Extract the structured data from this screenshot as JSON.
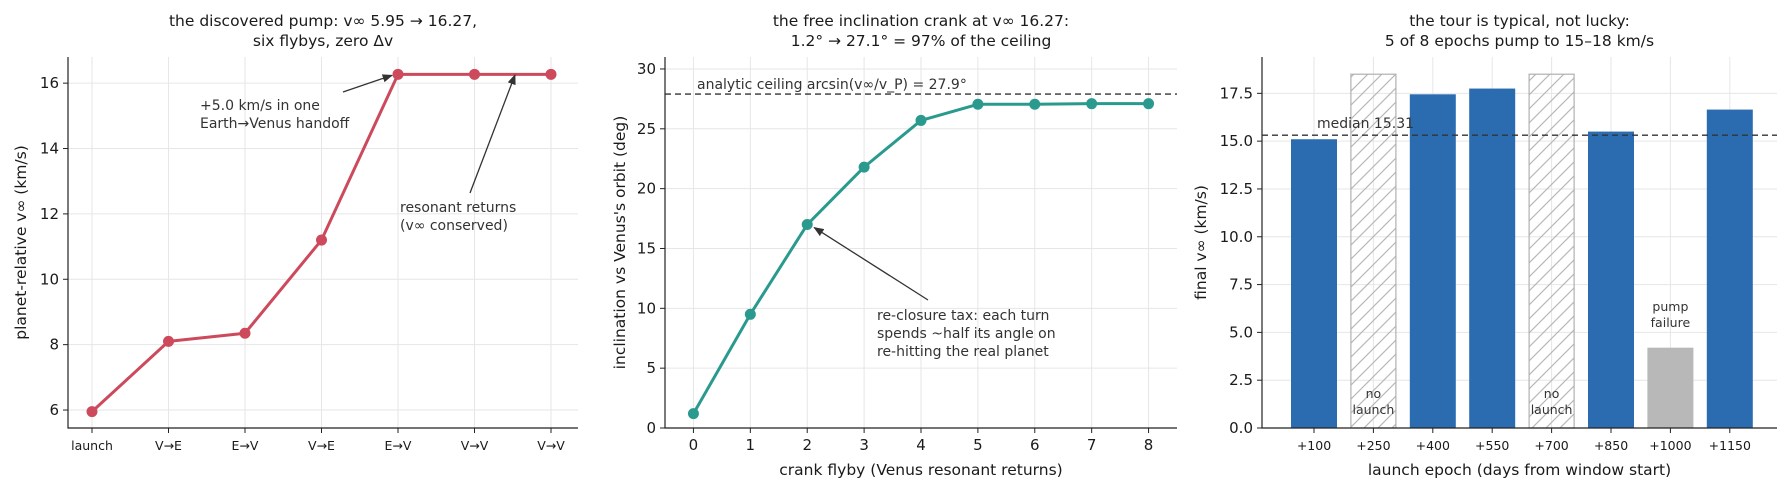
{
  "chart_data": [
    {
      "type": "line",
      "title": [
        "the discovered pump: v∞ 5.95 → 16.27,",
        "six flybys, zero Δv"
      ],
      "xlabel": "",
      "ylabel": "planet-relative v∞ (km/s)",
      "categories": [
        "launch",
        "V→E",
        "E→V",
        "V→E",
        "E→V",
        "V→V",
        "V→V"
      ],
      "values": [
        5.95,
        8.1,
        8.35,
        11.2,
        16.27,
        16.27,
        16.27
      ],
      "yticks": [
        6,
        8,
        10,
        12,
        14,
        16
      ],
      "ylim": [
        5.45,
        16.8
      ],
      "color": "#cc4a5c",
      "grid": true,
      "annotations": [
        {
          "lines": [
            "+5.0 km/s in one",
            "Earth→Venus handoff"
          ],
          "target_index": 4
        },
        {
          "lines": [
            "resonant returns",
            "(v∞ conserved)"
          ],
          "target_index": 5.5
        }
      ]
    },
    {
      "type": "line",
      "title": [
        "the free inclination crank at v∞ 16.27:",
        "1.2° → 27.1° = 97% of the ceiling"
      ],
      "xlabel": "crank flyby (Venus resonant returns)",
      "ylabel": "inclination vs Venus's orbit (deg)",
      "x": [
        0,
        1,
        2,
        3,
        4,
        5,
        6,
        7,
        8
      ],
      "values": [
        1.2,
        9.5,
        17.0,
        21.8,
        25.7,
        27.05,
        27.05,
        27.1,
        27.1
      ],
      "xticks": [
        0,
        1,
        2,
        3,
        4,
        5,
        6,
        7,
        8
      ],
      "yticks": [
        0,
        5,
        10,
        15,
        20,
        25,
        30
      ],
      "xlim": [
        -0.5,
        8.5
      ],
      "ylim": [
        0,
        31
      ],
      "color": "#2a9a8e",
      "grid": true,
      "ceiling": {
        "value": 27.9,
        "label": "analytic ceiling arcsin(v∞/v_P) = 27.9°"
      },
      "annotations": [
        {
          "lines": [
            "re-closure tax: each turn",
            "spends ~half its angle on",
            "re-hitting the real planet"
          ],
          "target_x": 2
        }
      ]
    },
    {
      "type": "bar",
      "title": [
        "the tour is typical, not lucky:",
        "5 of 8 epochs pump to 15–18 km/s"
      ],
      "xlabel": "launch epoch (days from window start)",
      "ylabel": "final v∞ (km/s)",
      "categories": [
        "+100",
        "+250",
        "+400",
        "+550",
        "+700",
        "+850",
        "+1000",
        "+1150"
      ],
      "values": [
        15.1,
        18.5,
        17.45,
        17.75,
        18.5,
        15.5,
        4.2,
        16.65
      ],
      "status": [
        "ok",
        "no-launch",
        "ok",
        "ok",
        "no-launch",
        "ok",
        "failure",
        "ok"
      ],
      "bar_labels": [
        "",
        "no\nlaunch",
        "",
        "",
        "no\nlaunch",
        "",
        "pump\nfailure",
        ""
      ],
      "yticks": [
        0.0,
        2.5,
        5.0,
        7.5,
        10.0,
        12.5,
        15.0,
        17.5
      ],
      "ytick_labels": [
        "0.0",
        "2.5",
        "5.0",
        "7.5",
        "10.0",
        "12.5",
        "15.0",
        "17.5"
      ],
      "ylim": [
        0,
        19.4
      ],
      "median": {
        "value": 15.31,
        "label": "median 15.31"
      },
      "colors": {
        "ok": "#2b6cb0",
        "failure": "#b8b8b8",
        "no-launch": "#b0b0b0"
      },
      "grid": true
    }
  ]
}
